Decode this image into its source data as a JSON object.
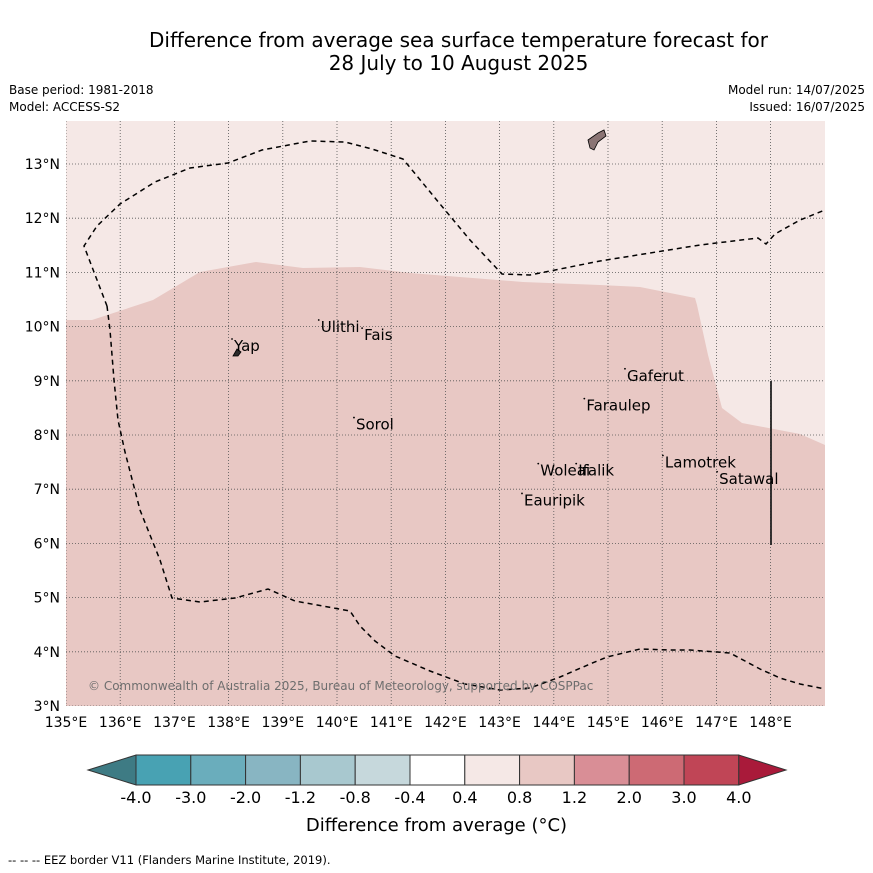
{
  "title": {
    "line1": "Difference from average sea surface temperature forecast for",
    "line2": "28 July to 10 August 2025"
  },
  "meta": {
    "base_period": "Base period: 1981-2018",
    "model": "Model: ACCESS-S2",
    "model_run": "Model run: 14/07/2025",
    "issued": "Issued: 16/07/2025"
  },
  "map": {
    "lon_range": [
      135,
      149
    ],
    "lat_range": [
      3,
      13.8
    ],
    "lon_ticks": [
      "135°E",
      "136°E",
      "137°E",
      "138°E",
      "139°E",
      "140°E",
      "141°E",
      "142°E",
      "143°E",
      "144°E",
      "145°E",
      "146°E",
      "147°E",
      "148°E"
    ],
    "lat_ticks": [
      "3°N",
      "4°N",
      "5°N",
      "6°N",
      "7°N",
      "8°N",
      "9°N",
      "10°N",
      "11°N",
      "12°N",
      "13°N"
    ],
    "places": [
      {
        "name": "Yap",
        "lon": 138.1,
        "lat": 9.55
      },
      {
        "name": "Ulithi",
        "lon": 139.7,
        "lat": 9.9
      },
      {
        "name": "Fais",
        "lon": 140.5,
        "lat": 9.75
      },
      {
        "name": "Gaferut",
        "lon": 145.35,
        "lat": 9.0
      },
      {
        "name": "Faraulep",
        "lon": 144.6,
        "lat": 8.45
      },
      {
        "name": "Sorol",
        "lon": 140.35,
        "lat": 8.1
      },
      {
        "name": "Lamotrek",
        "lon": 146.05,
        "lat": 7.4
      },
      {
        "name": "Woleai",
        "lon": 143.75,
        "lat": 7.25
      },
      {
        "name": "Ifalik",
        "lon": 144.45,
        "lat": 7.25
      },
      {
        "name": "Satawal",
        "lon": 147.05,
        "lat": 7.1
      },
      {
        "name": "Eauripik",
        "lon": 143.45,
        "lat": 6.7
      }
    ],
    "copyright": "© Commonwealth of Australia 2025, Bureau of Meteorology, supported by COSPPac",
    "zone_colors": {
      "0.4_to_0.8": "#f5e8e6",
      "0.8_to_1.2": "#e8c8c4"
    }
  },
  "colorbar": {
    "ticks": [
      "-4.0",
      "-3.0",
      "-2.0",
      "-1.2",
      "-0.8",
      "-0.4",
      "0.4",
      "0.8",
      "1.2",
      "2.0",
      "3.0",
      "4.0"
    ],
    "colors": [
      "#3e7b84",
      "#48a2b3",
      "#6aadbc",
      "#88b5c2",
      "#a8c8cf",
      "#c6d8dc",
      "#ffffff",
      "#f5e8e6",
      "#e8c8c4",
      "#d98e96",
      "#cd6a74",
      "#c04556",
      "#a91a3a"
    ],
    "label": "Difference from average (°C)"
  },
  "footnote": "--  --  -- EEZ border V11 (Flanders Marine Institute, 2019)."
}
